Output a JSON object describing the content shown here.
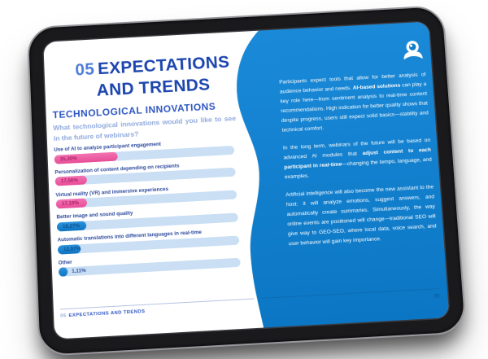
{
  "device": {
    "type": "tablet-mockup"
  },
  "slide": {
    "chapter_number": "05",
    "title_line1": "EXPECTATIONS",
    "title_line2": "AND TRENDS",
    "section_title": "TECHNOLOGICAL INNOVATIONS",
    "question": "What technological innovations would you like to see in the future of webinars?",
    "footer": {
      "chapter": "05",
      "label": "EXPECTATIONS AND TRENDS"
    },
    "page_number": "26"
  },
  "chart_data": {
    "type": "bar",
    "orientation": "horizontal",
    "unit": "%",
    "xlim": [
      0,
      100
    ],
    "categories": [
      "Use of AI to analyze participant engagement",
      "Personalization of content depending on recipients",
      "Virtual reality (VR) and immersive experiences",
      "Better image and sound quality",
      "Automatic translations into different languages in real-time",
      "Other"
    ],
    "values": [
      35.3,
      17.56,
      17.19,
      16.27,
      12.57,
      1.11
    ],
    "value_labels": [
      "35,30%",
      "17,56%",
      "17,19%",
      "16,27%",
      "12,57%",
      "1,11%"
    ],
    "bar_color_classes": [
      "pink",
      "pink",
      "pink",
      "blue",
      "blue",
      "blue"
    ]
  },
  "panel": {
    "paragraphs": [
      {
        "pre": "Participants expect tools that allow for better analysis of audience behavior and needs. ",
        "bold": "AI-based solutions",
        "post": " can play a key role here—from sentiment analysis to real-time content recommendations. High indication for better quality shows that despite progress, users still expect solid basics—stability and technical comfort."
      },
      {
        "pre": "In the long term, webinars of the future will be based on advanced AI modules that ",
        "bold": "adjust content to each participant in real-time",
        "post": "—changing the tempo, language, and examples."
      },
      {
        "pre": "Artificial intelligence will also become the new assistant to the host: it will analyze emotions, suggest answers, and automatically create summaries. Simultaneously, the way online events are positioned will change—traditional SEO will give way to GEO-SEO, where local data, voice search, and user behavior will gain key importance.",
        "bold": "",
        "post": ""
      }
    ]
  },
  "colors": {
    "panel_blue_top": "#1a8ad8",
    "panel_blue_bottom": "#0b76c4",
    "title_navy": "#1c45ae",
    "chapter_blue": "#4f7ed8",
    "section_blue": "#2d56c2",
    "question_blue": "#8fa9dd",
    "bar_track": "#cadff4",
    "bar_pink": "#ee58a1",
    "bar_blue": "#1478c8"
  }
}
